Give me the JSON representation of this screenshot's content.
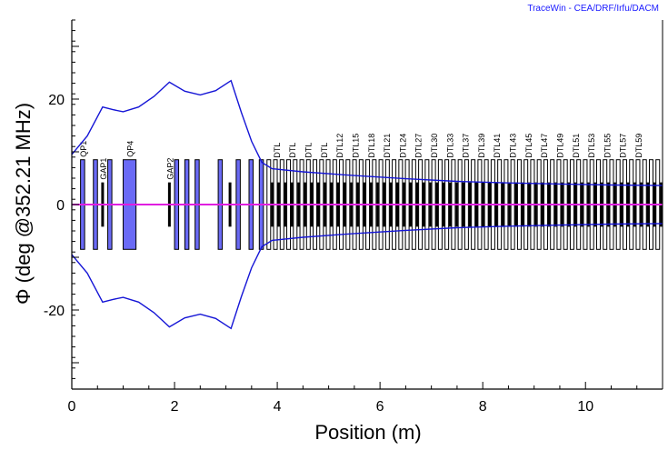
{
  "credit": "TraceWin - CEA/DRF/Irfu/DACM",
  "chart_data": {
    "type": "line",
    "xlabel": "Position (m)",
    "ylabel": "Φ (deg @352.21 MHz)",
    "xlim": [
      0,
      11.5
    ],
    "ylim": [
      -35,
      35
    ],
    "xticks": [
      0,
      2,
      4,
      6,
      8,
      10
    ],
    "yticks": [
      -20,
      0,
      20
    ],
    "grid": false,
    "series": [
      {
        "color": "#1515d6",
        "x": [
          0,
          0.3,
          0.6,
          0.8,
          1.0,
          1.3,
          1.6,
          1.9,
          2.2,
          2.5,
          2.8,
          3.1,
          3.3,
          3.5,
          3.7,
          3.9,
          4.5,
          5.5,
          6.5,
          7.5,
          8.5,
          9.5,
          10.5,
          11.5
        ],
        "y": [
          9.5,
          13,
          18.5,
          18,
          17.6,
          18.5,
          20.5,
          23.2,
          21.5,
          20.8,
          21.6,
          23.5,
          17.5,
          12,
          8,
          6.8,
          6.2,
          5.5,
          4.9,
          4.4,
          4.1,
          3.9,
          3.7,
          3.6
        ]
      },
      {
        "color": "#1515d6",
        "x": [
          0,
          0.3,
          0.6,
          0.8,
          1.0,
          1.3,
          1.6,
          1.9,
          2.2,
          2.5,
          2.8,
          3.1,
          3.3,
          3.5,
          3.7,
          3.9,
          4.5,
          5.5,
          6.5,
          7.5,
          8.5,
          9.5,
          10.5,
          11.5
        ],
        "y": [
          -9.5,
          -13,
          -18.5,
          -18,
          -17.6,
          -18.5,
          -20.5,
          -23.2,
          -21.5,
          -20.8,
          -21.6,
          -23.5,
          -17.5,
          -12,
          -8,
          -6.8,
          -6.2,
          -5.5,
          -4.9,
          -4.4,
          -4.1,
          -3.9,
          -3.7,
          -3.6
        ]
      },
      {
        "color": "#e01ee0",
        "x": [
          0,
          11.5
        ],
        "y": [
          0,
          0
        ]
      }
    ],
    "lattice": {
      "quad_color": "#6a6af5",
      "gap_color": "#000000",
      "quads": [
        {
          "label": "QP1",
          "x0": 0.17,
          "x1": 0.25,
          "h": 8.5
        },
        {
          "label": "",
          "x0": 0.42,
          "x1": 0.5,
          "h": 8.5
        },
        {
          "label": "",
          "x0": 0.7,
          "x1": 0.78,
          "h": 8.5
        },
        {
          "label": "QP4",
          "x0": 1.0,
          "x1": 1.25,
          "h": 8.5
        },
        {
          "label": "",
          "x0": 2.0,
          "x1": 2.08,
          "h": 8.5
        },
        {
          "label": "",
          "x0": 2.2,
          "x1": 2.28,
          "h": 8.5
        },
        {
          "label": "",
          "x0": 2.4,
          "x1": 2.48,
          "h": 8.5
        },
        {
          "label": "",
          "x0": 2.85,
          "x1": 2.93,
          "h": 8.5
        },
        {
          "label": "",
          "x0": 3.2,
          "x1": 3.28,
          "h": 8.5
        },
        {
          "label": "",
          "x0": 3.45,
          "x1": 3.53,
          "h": 8.5
        },
        {
          "label": "",
          "x0": 3.65,
          "x1": 3.73,
          "h": 8.5
        }
      ],
      "gaps": [
        {
          "label": "GAP1",
          "x": 0.6,
          "h": 4.2
        },
        {
          "label": "GAP2",
          "x": 1.9,
          "h": 4.2
        },
        {
          "label": "",
          "x": 3.08,
          "h": 4.2
        }
      ],
      "dtl_start": 3.8,
      "dtl_end": 11.5,
      "dtl_count": 60,
      "dtl_h": 8.5,
      "dtl_label_prefix": "DTL",
      "dtl_labels": [
        "DTL",
        "DTL",
        "DTL",
        "DTL",
        "DTL12",
        "DTL15",
        "DTL18",
        "DTL21",
        "DTL24",
        "DTL27",
        "DTL30",
        "DTL33",
        "DTL37",
        "DTL39",
        "DTL41",
        "DTL43",
        "DTL45",
        "DTL47",
        "DTL49",
        "DTL51",
        "DTL53",
        "DTL55",
        "DTL57",
        "DTL59"
      ]
    }
  }
}
